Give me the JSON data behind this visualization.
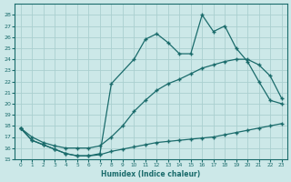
{
  "xlabel": "Humidex (Indice chaleur)",
  "ylabel": "",
  "bg_color": "#cce8e8",
  "line_color": "#1a6b6b",
  "grid_color": "#aacfcf",
  "xlim": [
    -0.5,
    23.5
  ],
  "ylim": [
    15,
    29
  ],
  "xticks": [
    0,
    1,
    2,
    3,
    4,
    5,
    6,
    7,
    8,
    9,
    10,
    11,
    12,
    13,
    14,
    15,
    16,
    17,
    18,
    19,
    20,
    21,
    22,
    23
  ],
  "yticks": [
    15,
    16,
    17,
    18,
    19,
    20,
    21,
    22,
    23,
    24,
    25,
    26,
    27,
    28
  ],
  "line1_x": [
    0,
    1,
    2,
    3,
    4,
    5,
    6,
    7,
    8,
    9,
    10,
    11,
    12,
    13,
    14,
    15,
    16,
    17,
    18,
    19,
    20,
    21,
    22,
    23
  ],
  "line1_y": [
    17.8,
    16.7,
    16.3,
    15.9,
    15.5,
    15.3,
    15.3,
    15.4,
    15.7,
    15.9,
    16.1,
    16.3,
    16.5,
    16.6,
    16.7,
    16.8,
    16.9,
    17.0,
    17.2,
    17.4,
    17.6,
    17.8,
    18.0,
    18.2
  ],
  "line2_x": [
    0,
    1,
    2,
    3,
    4,
    5,
    6,
    7,
    8,
    9,
    10,
    11,
    12,
    13,
    14,
    15,
    16,
    17,
    18,
    19,
    20,
    21,
    22,
    23
  ],
  "line2_y": [
    17.8,
    17.0,
    16.5,
    16.2,
    16.0,
    16.0,
    16.0,
    16.2,
    17.0,
    18.0,
    19.3,
    20.3,
    21.2,
    21.8,
    22.2,
    22.7,
    23.2,
    23.5,
    23.8,
    24.0,
    24.0,
    23.5,
    22.5,
    20.5
  ],
  "line3_x": [
    0,
    1,
    2,
    3,
    4,
    5,
    6,
    7,
    8,
    10,
    11,
    12,
    13,
    14,
    15,
    16,
    17,
    18,
    19,
    20,
    21,
    22,
    23
  ],
  "line3_y": [
    17.8,
    16.7,
    16.3,
    15.9,
    15.5,
    15.3,
    15.3,
    15.5,
    21.8,
    24.0,
    25.8,
    26.3,
    25.5,
    24.5,
    24.5,
    28.0,
    26.5,
    27.0,
    25.0,
    23.8,
    22.0,
    20.3,
    20.0
  ]
}
